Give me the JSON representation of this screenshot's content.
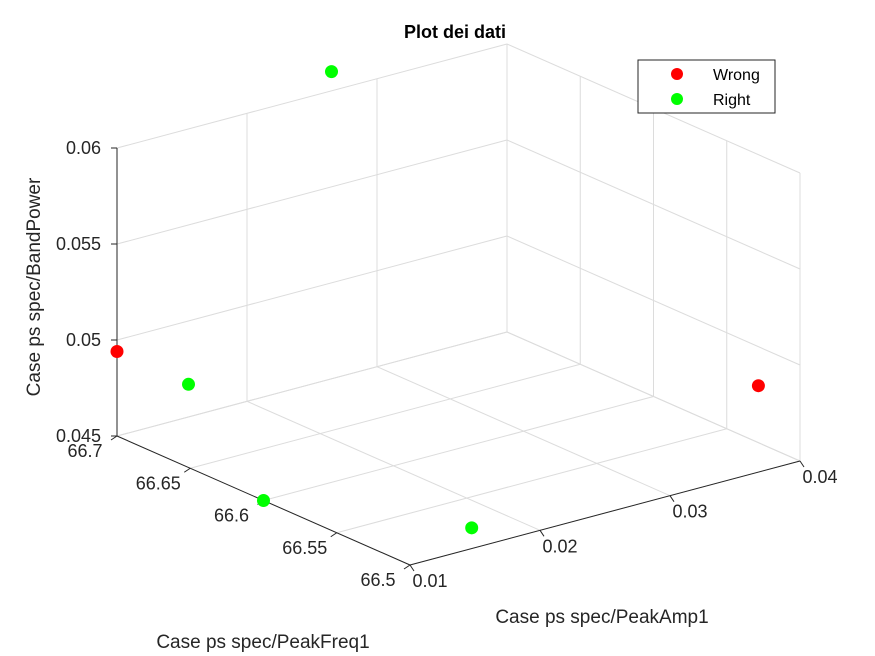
{
  "chart_data": {
    "type": "scatter",
    "title": "Plot dei dati",
    "xlabel": "Case ps spec/PeakAmp1",
    "ylabel": "Case ps spec/PeakFreq1",
    "zlabel": "Case ps spec/BandPower",
    "xlim": [
      0.01,
      0.04
    ],
    "ylim": [
      66.5,
      66.7
    ],
    "zlim": [
      0.045,
      0.06
    ],
    "xticks": [
      "0.01",
      "0.02",
      "0.03",
      "0.04"
    ],
    "yticks": [
      "66.5",
      "66.55",
      "66.6",
      "66.65",
      "66.7"
    ],
    "zticks": [
      "0.045",
      "0.05",
      "0.055",
      "0.06"
    ],
    "grid": true,
    "legend_position": "top-right",
    "series": [
      {
        "name": "Wrong",
        "color": "#ff0000",
        "points": [
          {
            "x": 0.01,
            "y": 66.7,
            "z": 0.0494
          },
          {
            "x": 0.0368,
            "y": 66.5,
            "z": 0.0495
          }
        ]
      },
      {
        "name": "Right",
        "color": "#00ff00",
        "points": [
          {
            "x": 0.0265,
            "y": 66.7,
            "z": 0.061
          },
          {
            "x": 0.0155,
            "y": 66.7,
            "z": 0.0467
          },
          {
            "x": 0.01,
            "y": 66.6,
            "z": 0.045
          },
          {
            "x": 0.017,
            "y": 66.52,
            "z": 0.045
          }
        ]
      }
    ]
  }
}
